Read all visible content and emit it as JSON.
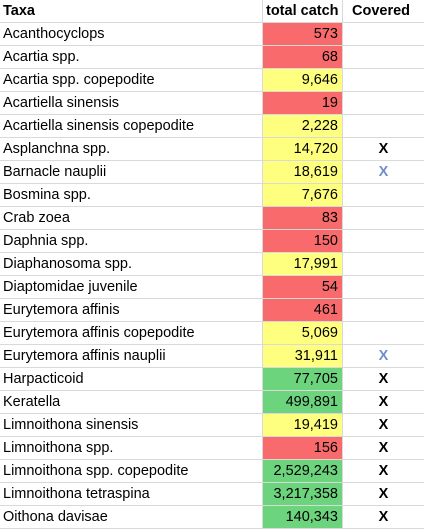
{
  "colors": {
    "red": "#f86a6b",
    "yellow": "#ffff7f",
    "green": "#6dd47e",
    "x_dark": "#000000",
    "x_light": "#6f8fcf"
  },
  "header": {
    "taxa": "Taxa",
    "catch": "total catch",
    "covered": "Covered"
  },
  "rows": [
    {
      "taxa": "Acanthocyclops",
      "catch": "573",
      "status": "red",
      "covered": "",
      "cov_style": ""
    },
    {
      "taxa": "Acartia spp.",
      "catch": "68",
      "status": "red",
      "covered": "",
      "cov_style": ""
    },
    {
      "taxa": "Acartia spp. copepodite",
      "catch": "9,646",
      "status": "yellow",
      "covered": "",
      "cov_style": ""
    },
    {
      "taxa": "Acartiella sinensis",
      "catch": "19",
      "status": "red",
      "covered": "",
      "cov_style": ""
    },
    {
      "taxa": "Acartiella sinensis copepodite",
      "catch": "2,228",
      "status": "yellow",
      "covered": "",
      "cov_style": ""
    },
    {
      "taxa": "Asplanchna spp.",
      "catch": "14,720",
      "status": "yellow",
      "covered": "X",
      "cov_style": "dark"
    },
    {
      "taxa": "Barnacle nauplii",
      "catch": "18,619",
      "status": "yellow",
      "covered": "X",
      "cov_style": "light"
    },
    {
      "taxa": "Bosmina spp.",
      "catch": "7,676",
      "status": "yellow",
      "covered": "",
      "cov_style": ""
    },
    {
      "taxa": "Crab zoea",
      "catch": "83",
      "status": "red",
      "covered": "",
      "cov_style": ""
    },
    {
      "taxa": "Daphnia spp.",
      "catch": "150",
      "status": "red",
      "covered": "",
      "cov_style": ""
    },
    {
      "taxa": "Diaphanosoma spp.",
      "catch": "17,991",
      "status": "yellow",
      "covered": "",
      "cov_style": ""
    },
    {
      "taxa": "Diaptomidae juvenile",
      "catch": "54",
      "status": "red",
      "covered": "",
      "cov_style": ""
    },
    {
      "taxa": "Eurytemora affinis",
      "catch": "461",
      "status": "red",
      "covered": "",
      "cov_style": ""
    },
    {
      "taxa": "Eurytemora affinis copepodite",
      "catch": "5,069",
      "status": "yellow",
      "covered": "",
      "cov_style": ""
    },
    {
      "taxa": "Eurytemora affinis nauplii",
      "catch": "31,911",
      "status": "yellow",
      "covered": "X",
      "cov_style": "light"
    },
    {
      "taxa": "Harpacticoid",
      "catch": "77,705",
      "status": "green",
      "covered": "X",
      "cov_style": "dark"
    },
    {
      "taxa": "Keratella",
      "catch": "499,891",
      "status": "green",
      "covered": "X",
      "cov_style": "dark"
    },
    {
      "taxa": "Limnoithona sinensis",
      "catch": "19,419",
      "status": "yellow",
      "covered": "X",
      "cov_style": "dark"
    },
    {
      "taxa": "Limnoithona spp.",
      "catch": "156",
      "status": "red",
      "covered": "X",
      "cov_style": "dark"
    },
    {
      "taxa": "Limnoithona spp. copepodite",
      "catch": "2,529,243",
      "status": "green",
      "covered": "X",
      "cov_style": "dark"
    },
    {
      "taxa": "Limnoithona tetraspina",
      "catch": "3,217,358",
      "status": "green",
      "covered": "X",
      "cov_style": "dark"
    },
    {
      "taxa": "Oithona davisae",
      "catch": "140,343",
      "status": "green",
      "covered": "X",
      "cov_style": "dark"
    }
  ]
}
